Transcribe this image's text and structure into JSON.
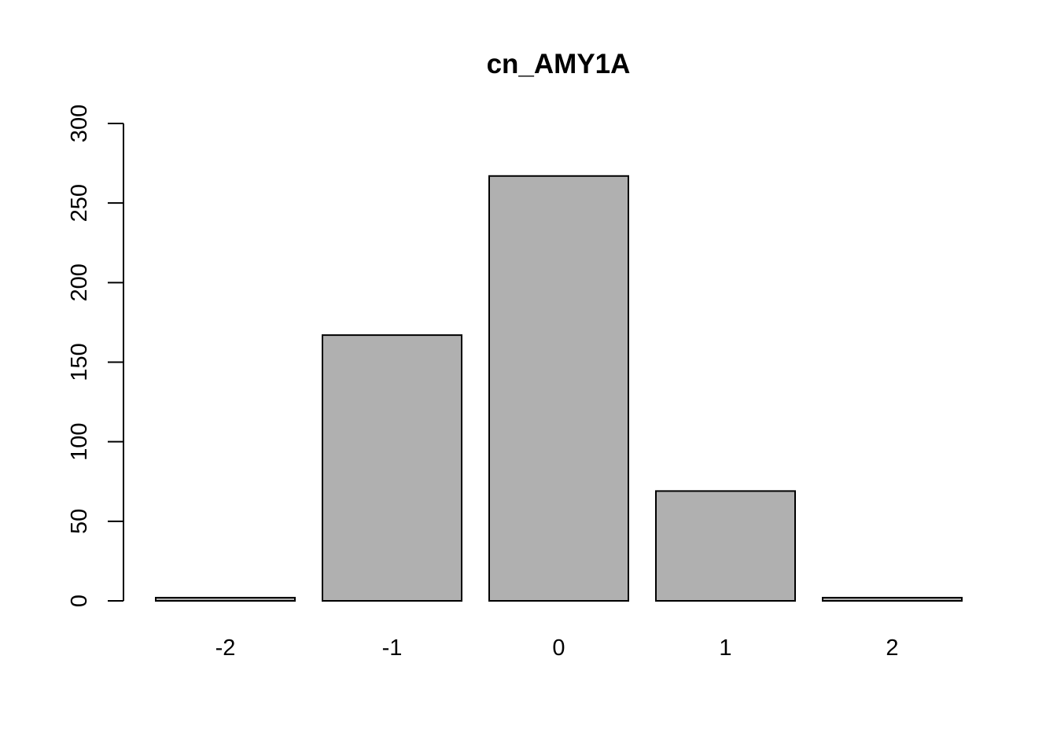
{
  "chart_data": {
    "type": "bar",
    "title": "cn_AMY1A",
    "xlabel": "",
    "ylabel": "",
    "categories": [
      "-2",
      "-1",
      "0",
      "1",
      "2"
    ],
    "values": [
      2,
      167,
      267,
      69,
      2
    ],
    "ylim": [
      0,
      300
    ],
    "yticks": [
      0,
      50,
      100,
      150,
      200,
      250,
      300
    ],
    "ytick_labels": [
      "0",
      "50",
      "100",
      "150",
      "200",
      "250",
      "300"
    ],
    "grid": false,
    "legend": "none",
    "colors": {
      "bar_fill": "#b0b0b0",
      "bar_stroke": "#000000"
    }
  }
}
